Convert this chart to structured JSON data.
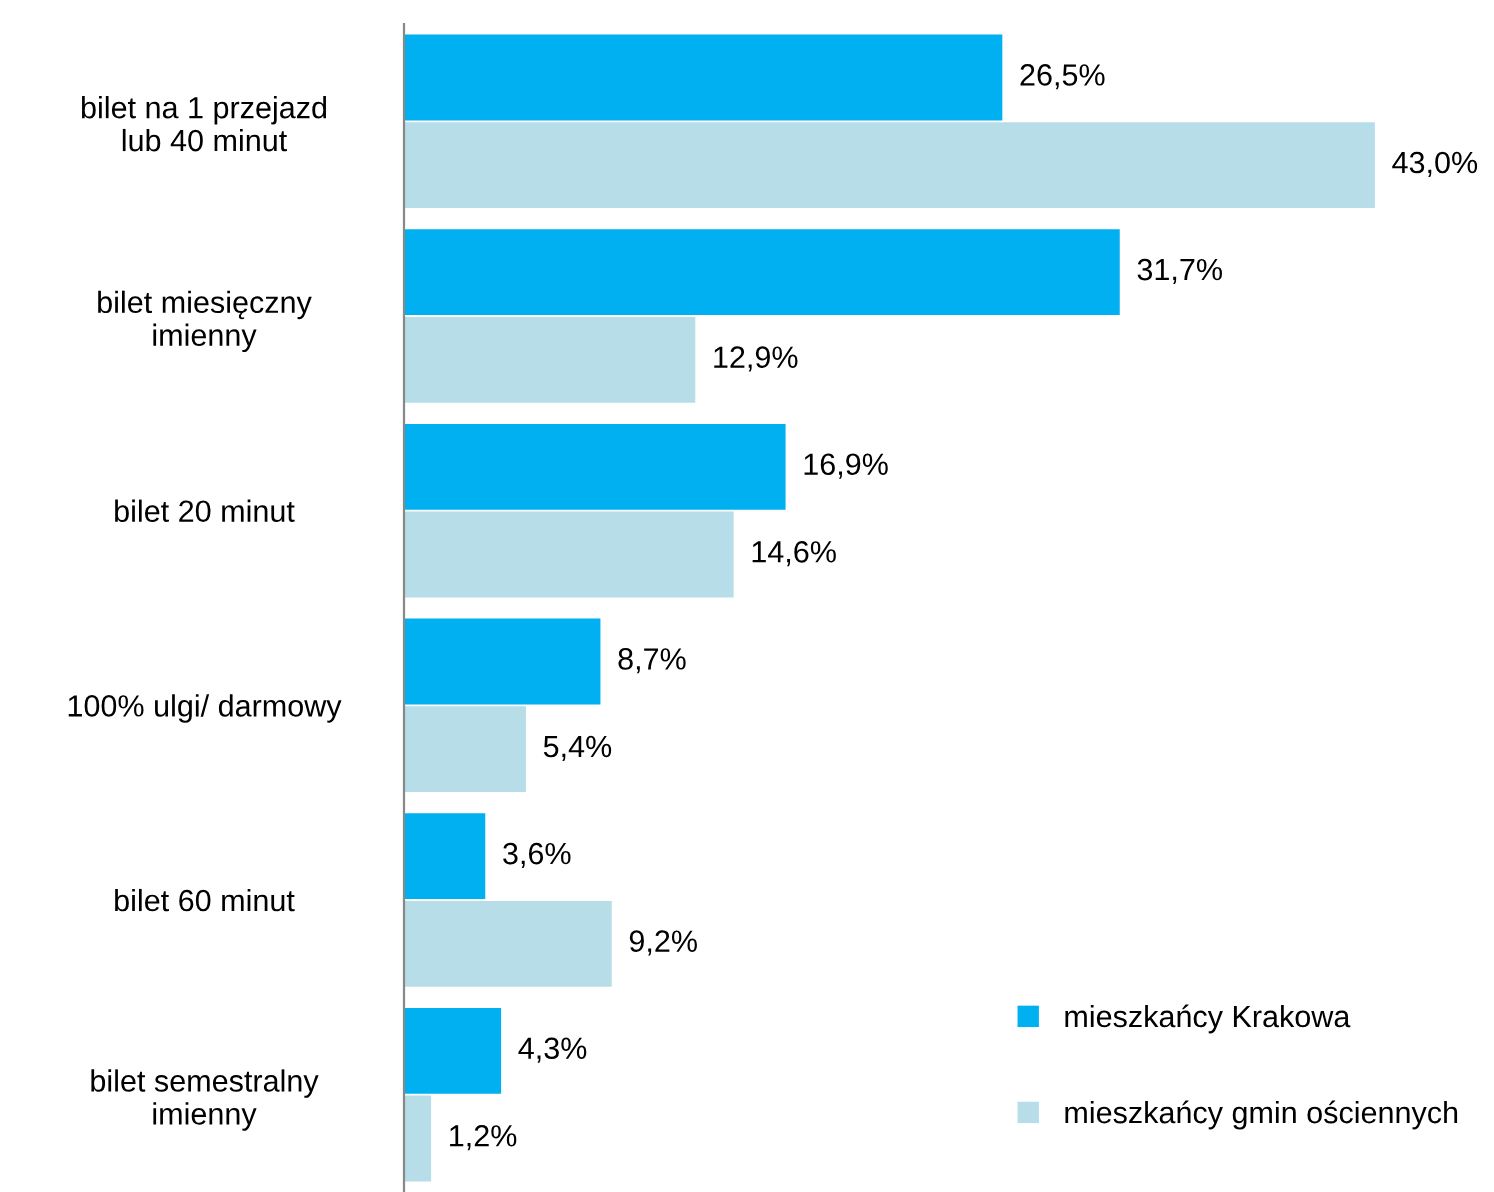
{
  "chart_data": {
    "type": "bar",
    "orientation": "horizontal",
    "legend": "bottom right",
    "grid": false,
    "categories": [
      "bilet na 1 przejazd\nlub 40 minut",
      "bilet miesięczny\nimienny",
      "bilet 20 minut",
      "100% ulgi/ darmowy",
      "bilet 60 minut",
      "bilet semestralny\nimienny"
    ],
    "series": [
      {
        "name": "mieszkańcy Krakowa",
        "color": "#00b0f0",
        "values": [
          26.5,
          31.7,
          16.9,
          8.7,
          3.6,
          4.3
        ],
        "value_labels": [
          "26,5%",
          "31,7%",
          "16,9%",
          "8,7%",
          "3,6%",
          "4,3%"
        ]
      },
      {
        "name": "mieszkańcy gmin ościennych",
        "color": "#b7dee8",
        "values": [
          43.0,
          12.9,
          14.6,
          5.4,
          9.2,
          1.2
        ],
        "value_labels": [
          "43,0%",
          "12,9%",
          "14,6%",
          "5,4%",
          "9,2%",
          "1,2%"
        ]
      }
    ]
  }
}
